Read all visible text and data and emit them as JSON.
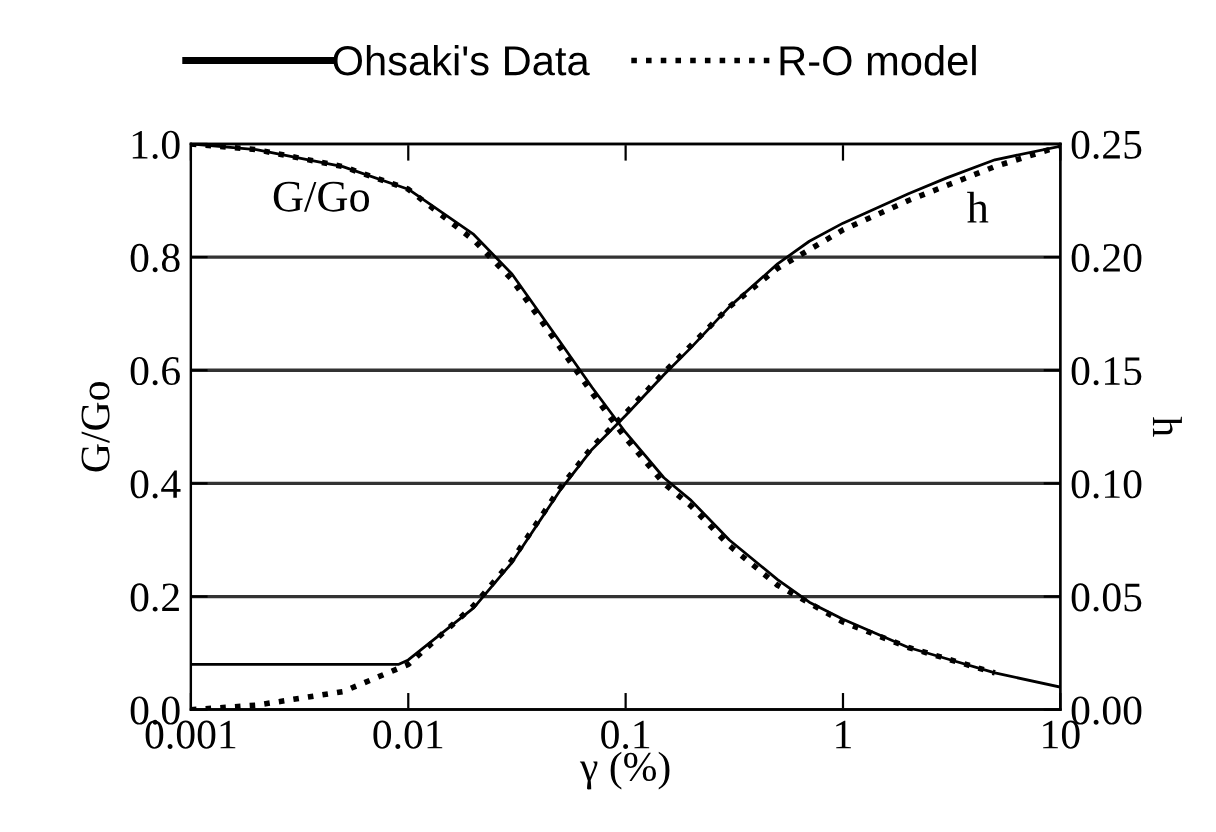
{
  "chart_data": {
    "type": "line",
    "xlabel": "γ (%)",
    "ylabel": "G/Go",
    "y2label": "h",
    "log": "x",
    "xlim": [
      0.001,
      10
    ],
    "xticks": [
      0.001,
      0.01,
      0.1,
      1,
      10
    ],
    "ylim": [
      0,
      1
    ],
    "yticks": [
      {
        "value": 0,
        "label": "0.0"
      },
      {
        "value": 0.2,
        "label": "0.2"
      },
      {
        "value": 0.4,
        "label": "0.4"
      },
      {
        "value": 0.6,
        "label": "0.6"
      },
      {
        "value": 0.8,
        "label": "0.8"
      },
      {
        "value": 1,
        "label": "1.0"
      }
    ],
    "y2lim": [
      0,
      0.25
    ],
    "y2ticks": [
      {
        "value": 0,
        "label": "0.00"
      },
      {
        "value": 0.05,
        "label": "0.05"
      },
      {
        "value": 0.1,
        "label": "0.10"
      },
      {
        "value": 0.15,
        "label": "0.15"
      },
      {
        "value": 0.2,
        "label": "0.20"
      },
      {
        "value": 0.25,
        "label": "0.25"
      }
    ],
    "grid": "y",
    "legend": "top",
    "marker": "none",
    "series": [
      {
        "name": "Ohsaki's Data",
        "color": "#000000",
        "line_style": "solid",
        "x": [
          0.001,
          0.002,
          0.005,
          0.01,
          0.02,
          0.03,
          0.05,
          0.07,
          0.1,
          0.15,
          0.2,
          0.3,
          0.5,
          0.7,
          1,
          2,
          3,
          5,
          10
        ],
        "values": [
          1.0,
          0.99,
          0.96,
          0.92,
          0.84,
          0.77,
          0.65,
          0.57,
          0.49,
          0.41,
          0.37,
          0.3,
          0.23,
          0.19,
          0.16,
          0.11,
          0.09,
          0.065,
          0.04
        ]
      },
      {
        "name": "R-O model",
        "color": "#000000",
        "line_style": "dotted",
        "x": [
          0.001,
          0.002,
          0.005,
          0.01,
          0.02,
          0.03,
          0.05,
          0.07,
          0.1,
          0.15,
          0.2,
          0.3,
          0.5,
          1,
          2,
          5
        ],
        "values": [
          1.0,
          0.99,
          0.96,
          0.92,
          0.83,
          0.76,
          0.64,
          0.56,
          0.48,
          0.4,
          0.36,
          0.29,
          0.22,
          0.155,
          0.11,
          0.065
        ]
      },
      {
        "color": "#000000",
        "line_style": "solid",
        "axis": "y2",
        "x": [
          0.001,
          0.009,
          0.01,
          0.02,
          0.03,
          0.05,
          0.07,
          0.1,
          0.15,
          0.2,
          0.3,
          0.5,
          0.7,
          1,
          2,
          3,
          5,
          10
        ],
        "values": [
          0.02,
          0.02,
          0.022,
          0.045,
          0.065,
          0.097,
          0.115,
          0.13,
          0.148,
          0.16,
          0.178,
          0.197,
          0.207,
          0.215,
          0.228,
          0.235,
          0.243,
          0.249
        ]
      },
      {
        "color": "#000000",
        "line_style": "dotted",
        "axis": "y2",
        "x": [
          0.001,
          0.002,
          0.005,
          0.01,
          0.02,
          0.03,
          0.05,
          0.07,
          0.1,
          0.15,
          0.2,
          0.3,
          0.5,
          1,
          2,
          5,
          10
        ],
        "values": [
          0.0,
          0.002,
          0.008,
          0.02,
          0.046,
          0.066,
          0.098,
          0.116,
          0.131,
          0.149,
          0.161,
          0.178,
          0.195,
          0.212,
          0.225,
          0.24,
          0.249
        ]
      }
    ],
    "annotations": [
      "G/Go",
      "h"
    ]
  }
}
